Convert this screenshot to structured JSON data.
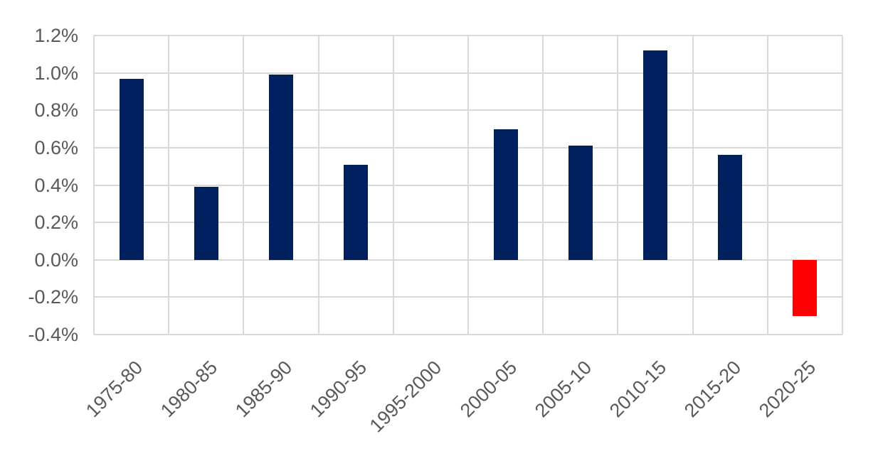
{
  "chart_data": {
    "type": "bar",
    "title": "",
    "xlabel": "",
    "ylabel": "",
    "unit": "%",
    "categories": [
      "1975-80",
      "1980-85",
      "1985-90",
      "1990-95",
      "1995-2000",
      "2000-05",
      "2005-10",
      "2010-15",
      "2015-20",
      "2020-25"
    ],
    "values": [
      0.97,
      0.39,
      0.99,
      0.51,
      0.0,
      0.7,
      0.61,
      1.12,
      0.56,
      -0.3
    ],
    "bar_colors": [
      "#002060",
      "#002060",
      "#002060",
      "#002060",
      "#002060",
      "#002060",
      "#002060",
      "#002060",
      "#002060",
      "#FF0000"
    ],
    "ylim": [
      -0.4,
      1.2
    ],
    "ytick_step": 0.2,
    "ytick_labels": [
      "1.2%",
      "1.0%",
      "0.8%",
      "0.6%",
      "0.4%",
      "0.2%",
      "0.0%",
      "-0.2%",
      "-0.4%"
    ],
    "grid": true,
    "legend": "none",
    "colors": {
      "bar_default": "#002060",
      "bar_negative_highlight": "#FF0000",
      "gridline": "#D9D9D9",
      "axis_text": "#595959",
      "background": "#FFFFFF"
    }
  }
}
